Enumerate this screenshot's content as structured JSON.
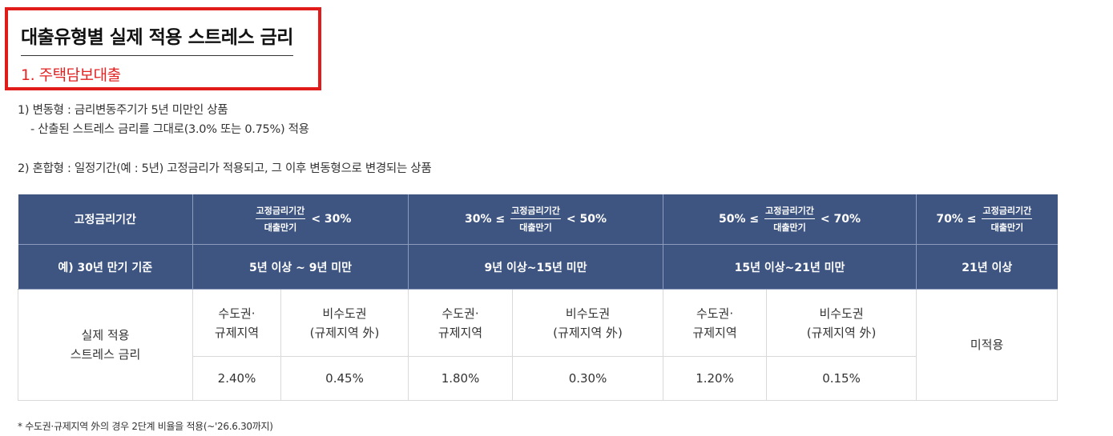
{
  "header": {
    "title": "대출유형별 실제 적용 스트레스 금리",
    "subtitle": "1. 주택담보대출"
  },
  "descriptions": {
    "variable": "1) 변동형 : 금리변동주기가 5년 미만인 상품",
    "variable_detail": "- 산출된 스트레스 금리를 그대로(3.0% 또는 0.75%) 적용",
    "mixed": "2) 혼합형 : 일정기간(예 : 5년) 고정금리가 적용되고, 그 이후 변동형으로 변경되는 상품"
  },
  "table": {
    "row1_label": "고정금리기간",
    "fraction": {
      "numerator": "고정금리기간",
      "denominator": "대출만기"
    },
    "ranges": [
      {
        "prefix": "",
        "suffix": "< 30%"
      },
      {
        "prefix": "30% ≤",
        "suffix": "< 50%"
      },
      {
        "prefix": "50% ≤",
        "suffix": "< 70%"
      },
      {
        "prefix": "70% ≤",
        "suffix": ""
      }
    ],
    "row2_label": "예) 30년 만기 기준",
    "terms": [
      "5년 이상 ~ 9년 미만",
      "9년 이상~15년 미만",
      "15년 이상~21년 미만",
      "21년 이상"
    ],
    "body_label_line1": "실제 적용",
    "body_label_line2": "스트레스 금리",
    "region_metro_line1": "수도권·",
    "region_metro_line2": "규제지역",
    "region_non_line1": "비수도권",
    "region_non_line2": "(규제지역 外)",
    "rates": [
      "2.40%",
      "0.45%",
      "1.80%",
      "0.30%",
      "1.20%",
      "0.15%"
    ],
    "not_applied": "미적용"
  },
  "footnote": "* 수도권·규제지역 外의 경우 2단계 비율을 적용(~'26.6.30까지)"
}
